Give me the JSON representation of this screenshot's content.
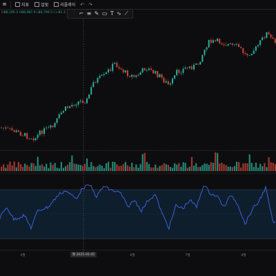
{
  "toolbar": {
    "items": [
      {
        "label": "지표"
      },
      {
        "label": "얼럿"
      },
      {
        "label": "리플레이"
      }
    ],
    "undo_icon": "undo-icon",
    "redo_icon": "redo-icon"
  },
  "legend": {
    "text_o": "O",
    "open": "88,195.3",
    "text_h": "H",
    "high": "88,487.0",
    "text_l": "L",
    "low": "86,709.5",
    "text_c": "C",
    "close": "+81.3 +0.1%"
  },
  "drawing_tools": [
    {
      "icon": "grip-icon",
      "glyph": "⋮"
    },
    {
      "icon": "horizontal-line-icon",
      "glyph": "⌐"
    },
    {
      "icon": "fib-lines-icon",
      "glyph": "≡"
    },
    {
      "icon": "brush-icon",
      "glyph": "✎"
    },
    {
      "icon": "rectangle-icon",
      "glyph": "▭"
    },
    {
      "icon": "text-icon",
      "glyph": "T"
    },
    {
      "icon": "zigzag-icon",
      "glyph": "∿"
    },
    {
      "icon": "measure-icon",
      "glyph": "⟋"
    }
  ],
  "x_axis": {
    "labels": [
      "4월",
      "5월",
      "6월",
      "7월",
      "8월"
    ],
    "crosshair_label": "월 2025-05-05"
  },
  "colors": {
    "up": "#2bb39a",
    "down": "#d0463b",
    "rsi_line": "#3d62d6",
    "rsi_band": "#0f2233",
    "background": "#0d0d0f"
  }
}
